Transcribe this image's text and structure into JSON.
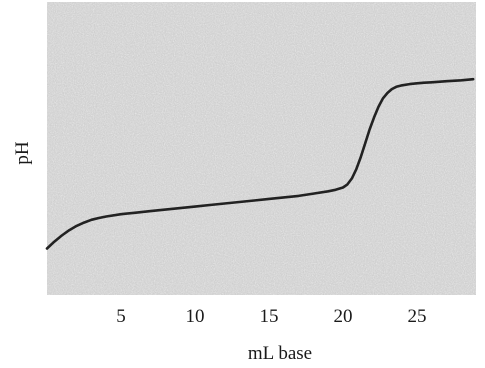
{
  "chart_data": {
    "type": "line",
    "title": "",
    "xlabel": "mL base",
    "ylabel": "pH",
    "xlim": [
      0,
      30
    ],
    "x_ticks": [
      5,
      10,
      15,
      20,
      25
    ],
    "y_ticks": [],
    "grid": false,
    "legend": "none",
    "colors": {
      "line": "#222222",
      "plot_background": "#c9c9c9"
    },
    "series": [
      {
        "x": [
          0,
          0.5,
          1.0,
          1.5,
          2.0,
          2.5,
          3.0,
          3.5,
          4.0,
          5.0,
          6.0,
          7.0,
          8.0,
          9.0,
          10.0,
          11.0,
          12.0,
          13.0,
          14.0,
          15.0,
          16.0,
          17.0,
          18.0,
          19.0,
          19.5,
          20.0,
          20.3,
          20.6,
          20.9,
          21.2,
          21.5,
          21.8,
          22.1,
          22.4,
          22.7,
          23.0,
          23.3,
          23.6,
          24.0,
          24.5,
          25.0,
          25.5,
          26.0,
          27.0,
          28.0,
          28.8
        ],
        "y": [
          2.0,
          2.45,
          2.85,
          3.2,
          3.48,
          3.7,
          3.88,
          4.0,
          4.1,
          4.25,
          4.35,
          4.45,
          4.55,
          4.65,
          4.75,
          4.85,
          4.95,
          5.05,
          5.15,
          5.25,
          5.35,
          5.45,
          5.6,
          5.75,
          5.85,
          6.0,
          6.2,
          6.6,
          7.2,
          8.0,
          8.9,
          9.8,
          10.6,
          11.3,
          11.85,
          12.2,
          12.45,
          12.6,
          12.7,
          12.78,
          12.83,
          12.87,
          12.9,
          12.97,
          13.03,
          13.1
        ]
      }
    ]
  }
}
